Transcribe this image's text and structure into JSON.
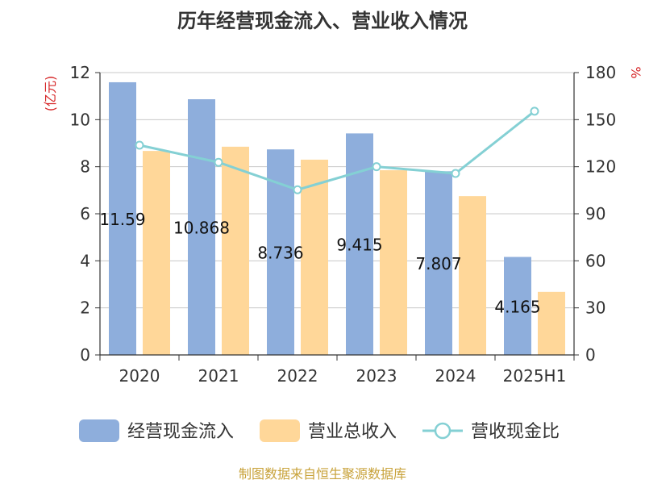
{
  "chart_data": {
    "type": "bar",
    "title": "历年经营现金流入、营业收入情况",
    "categories": [
      "2020",
      "2021",
      "2022",
      "2023",
      "2024",
      "2025H1"
    ],
    "y_left": {
      "unit": "(亿元)",
      "range": [
        0,
        12
      ],
      "ticks": [
        0,
        2,
        4,
        6,
        8,
        10,
        12
      ]
    },
    "y_right": {
      "unit": "%",
      "range": [
        0,
        180
      ],
      "ticks": [
        0,
        30,
        60,
        90,
        120,
        150,
        180
      ]
    },
    "series": [
      {
        "name": "经营现金流入",
        "type": "bar",
        "axis": "left",
        "color": "#8eaedc",
        "values": [
          11.59,
          10.868,
          8.736,
          9.415,
          7.807,
          4.165
        ],
        "data_labels": [
          "11.59",
          "10.868",
          "8.736",
          "9.415",
          "7.807",
          "4.165"
        ]
      },
      {
        "name": "营业总收入",
        "type": "bar",
        "axis": "left",
        "color": "#ffd799",
        "values": [
          8.67,
          8.85,
          8.3,
          7.85,
          6.75,
          2.68
        ]
      },
      {
        "name": "营收现金比",
        "type": "line",
        "axis": "right",
        "color": "#84d0d4",
        "values": [
          133.7,
          122.8,
          105.3,
          120.0,
          115.7,
          155.4
        ]
      }
    ],
    "grid": true,
    "legend_position": "bottom"
  },
  "source": "制图数据来自恒生聚源数据库"
}
